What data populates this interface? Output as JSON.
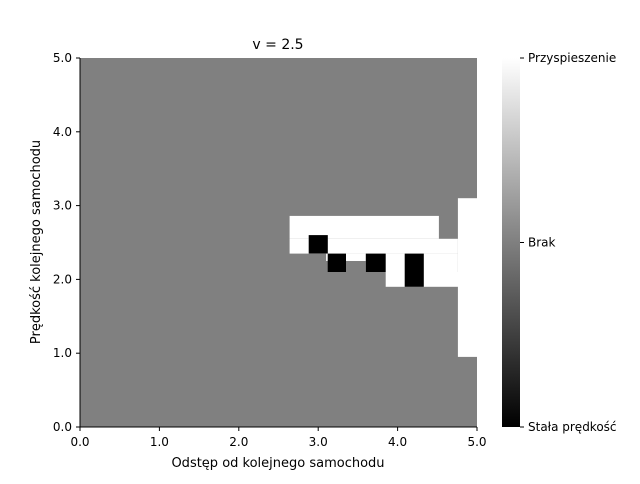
{
  "chart_data": {
    "type": "heatmap",
    "title": "v = 2.5",
    "xlabel": "Odstęp od kolejnego samochodu",
    "ylabel": "Prędkość kolejnego samochodu",
    "xlim": [
      0,
      5
    ],
    "ylim": [
      0,
      5
    ],
    "x_ticks": [
      "0.0",
      "1.0",
      "2.0",
      "3.0",
      "4.0",
      "5.0"
    ],
    "y_ticks": [
      "0.0",
      "1.0",
      "2.0",
      "3.0",
      "4.0",
      "5.0"
    ],
    "grid": false,
    "colormap": "gray",
    "levels": {
      "stala": -1,
      "brak": 0,
      "przyspieszenie": 1
    },
    "colorbar": {
      "ticks": [
        {
          "value": 1,
          "label": "Przyspieszenie"
        },
        {
          "value": 0,
          "label": "Brak"
        },
        {
          "value": -1,
          "label": "Stała prędkość"
        }
      ]
    },
    "default_value": 0,
    "regions": [
      {
        "x0": 4.76,
        "x1": 5.0,
        "y0": 0.95,
        "y1": 3.1,
        "value": 1
      },
      {
        "x0": 2.64,
        "x1": 4.52,
        "y0": 2.55,
        "y1": 2.86,
        "value": 1
      },
      {
        "x0": 2.64,
        "x1": 4.76,
        "y0": 2.35,
        "y1": 2.55,
        "value": 1
      },
      {
        "x0": 3.1,
        "x1": 4.76,
        "y0": 2.25,
        "y1": 2.35,
        "value": 1
      },
      {
        "x0": 3.6,
        "x1": 4.76,
        "y0": 2.1,
        "y1": 2.25,
        "value": 1
      },
      {
        "x0": 3.85,
        "x1": 4.76,
        "y0": 1.9,
        "y1": 2.1,
        "value": 1
      },
      {
        "x0": 2.88,
        "x1": 3.12,
        "y0": 2.35,
        "y1": 2.6,
        "value": -1
      },
      {
        "x0": 3.12,
        "x1": 3.35,
        "y0": 2.1,
        "y1": 2.35,
        "value": -1
      },
      {
        "x0": 3.6,
        "x1": 3.85,
        "y0": 2.1,
        "y1": 2.35,
        "value": -1
      },
      {
        "x0": 4.09,
        "x1": 4.33,
        "y0": 1.9,
        "y1": 2.35,
        "value": -1
      }
    ]
  }
}
